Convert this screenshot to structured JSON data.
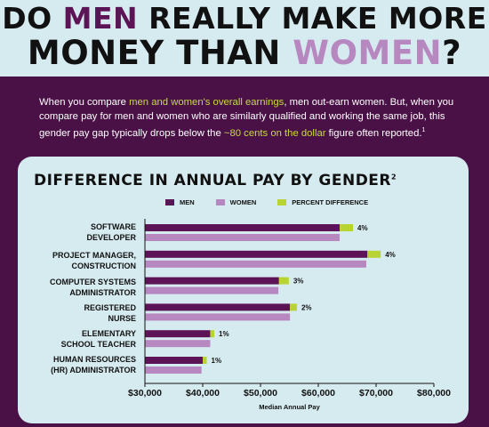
{
  "header": {
    "line1_a": "DO ",
    "line1_b": "MEN",
    "line1_c": " REALLY MAKE MORE",
    "line2_a": "MONEY THAN ",
    "line2_b": "WOMEN",
    "line2_c": "?"
  },
  "intro": {
    "t1": "When you compare ",
    "h1": "men and women's overall earnings",
    "t2": ", men out-earn women.  But, when you compare pay for men and women who are similarly qualified and working the same job, this gender pay gap typically drops below the ",
    "h2": "~80 cents on the dollar",
    "t3": " figure often reported.",
    "sup": "1"
  },
  "colors": {
    "men": "#5c1457",
    "women": "#b787c0",
    "diff": "#b8d434",
    "panel": "#d6ebf0",
    "background": "#4a1146"
  },
  "chart_data": {
    "type": "bar",
    "orientation": "horizontal",
    "title": "DIFFERENCE IN ANNUAL PAY BY GENDER",
    "title_sup": "2",
    "xlabel": "Median Annual Pay",
    "xlim": [
      30000,
      80000
    ],
    "xticks": [
      30000,
      40000,
      50000,
      60000,
      70000,
      80000
    ],
    "xtick_labels": [
      "$30,000",
      "$40,000",
      "$50,000",
      "$60,000",
      "$70,000",
      "$80,000"
    ],
    "legend": [
      "MEN",
      "WOMEN",
      "PERCENT DIFFERENCE"
    ],
    "legend_position": "top",
    "stacked_difference": true,
    "categories": [
      {
        "line1": "SOFTWARE",
        "line2": "DEVELOPER"
      },
      {
        "line1": "PROJECT MANAGER,",
        "line2": "CONSTRUCTION"
      },
      {
        "line1": "COMPUTER SYSTEMS",
        "line2": "ADMINISTRATOR"
      },
      {
        "line1": "REGISTERED",
        "line2": "NURSE"
      },
      {
        "line1": "ELEMENTARY",
        "line2": "SCHOOL TEACHER"
      },
      {
        "line1": "HUMAN RESOURCES",
        "line2": "(HR) ADMINISTRATOR"
      }
    ],
    "series": [
      {
        "name": "MEN",
        "values": [
          63700,
          68500,
          53200,
          55100,
          41300,
          40000
        ]
      },
      {
        "name": "WOMEN",
        "values": [
          63700,
          68300,
          53100,
          55100,
          41300,
          39800
        ]
      },
      {
        "name": "PERCENT DIFFERENCE",
        "values": [
          2300,
          2300,
          1700,
          1200,
          700,
          700
        ]
      }
    ],
    "diff_labels": [
      "4%",
      "4%",
      "3%",
      "2%",
      "1%",
      "1%"
    ]
  }
}
